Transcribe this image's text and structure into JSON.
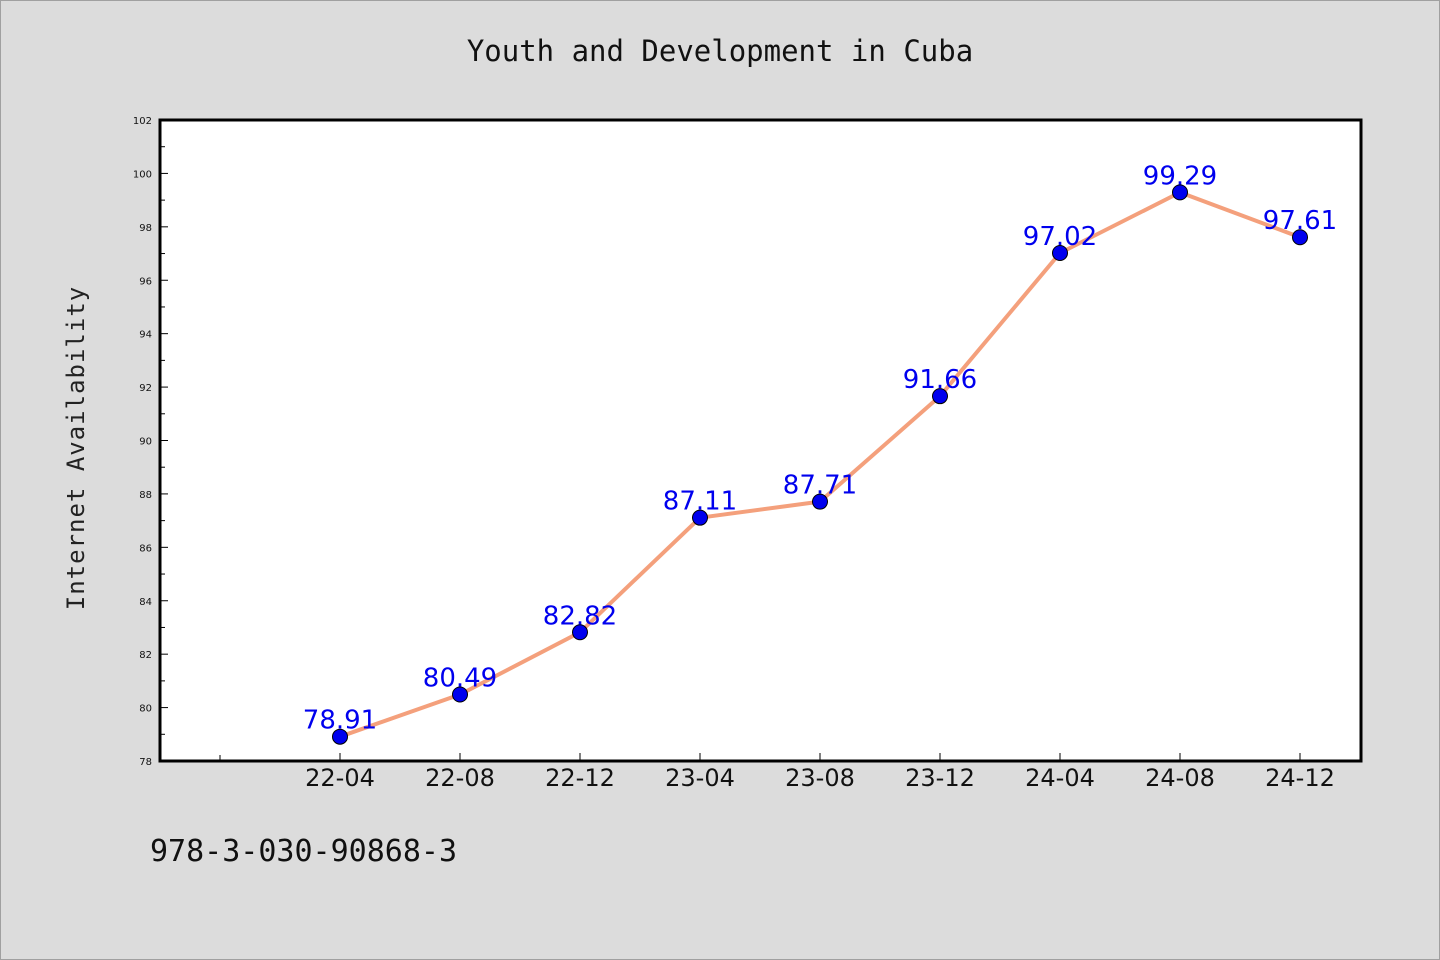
{
  "chart_data": {
    "type": "line",
    "title": "Youth and Development in Cuba",
    "xlabel": "",
    "ylabel": "Internet Availability",
    "categories": [
      "22-04",
      "22-08",
      "22-12",
      "23-04",
      "23-08",
      "23-12",
      "24-04",
      "24-08",
      "24-12"
    ],
    "series": [
      {
        "values": [
          78.91,
          80.49,
          82.82,
          87.11,
          87.71,
          91.66,
          97.02,
          99.29,
          97.61
        ],
        "line_color": "#f4a07c",
        "marker_color": "#0000ee"
      }
    ],
    "data_labels": [
      "78.91",
      "80.49",
      "82.82",
      "87.11",
      "87.71",
      "91.66",
      "97.02",
      "99.29",
      "97.61"
    ],
    "ylim": [
      78,
      102
    ],
    "yticks": [
      "78",
      "80",
      "82",
      "84",
      "86",
      "88",
      "90",
      "92",
      "94",
      "96",
      "98",
      "100",
      "102"
    ],
    "grid": false,
    "legend": "none"
  },
  "footer": {
    "code": "978-3-030-90868-3"
  }
}
